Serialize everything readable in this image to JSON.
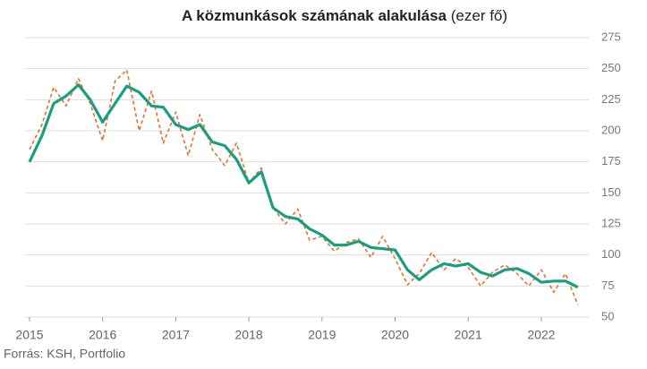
{
  "chart_data": {
    "type": "line",
    "title": "A közmunkások számának alakulása",
    "title_unit": "(ezer fő)",
    "source": "Forrás: KSH, Portfolio",
    "x": [
      2015,
      2015.17,
      2015.33,
      2015.5,
      2015.67,
      2015.83,
      2016,
      2016.17,
      2016.33,
      2016.5,
      2016.67,
      2016.83,
      2017,
      2017.17,
      2017.33,
      2017.5,
      2017.67,
      2017.83,
      2018,
      2018.17,
      2018.33,
      2018.5,
      2018.67,
      2018.83,
      2019,
      2019.17,
      2019.33,
      2019.5,
      2019.67,
      2019.83,
      2020,
      2020.17,
      2020.33,
      2020.5,
      2020.67,
      2020.83,
      2021,
      2021.17,
      2021.33,
      2021.5,
      2021.67,
      2021.83,
      2022,
      2022.17,
      2022.33,
      2022.5
    ],
    "series": [
      {
        "color": "#e8702a",
        "dashed": true,
        "values": [
          185,
          205,
          235,
          220,
          242,
          222,
          192,
          240,
          249,
          200,
          232,
          190,
          215,
          180,
          213,
          185,
          172,
          190,
          158,
          170,
          138,
          125,
          137,
          112,
          115,
          103,
          110,
          113,
          98,
          115,
          97,
          76,
          85,
          102,
          88,
          97,
          90,
          75,
          86,
          92,
          85,
          75,
          88,
          70,
          85,
          60
        ]
      },
      {
        "color": "#1a9e7f",
        "dashed": false,
        "values": [
          175,
          196,
          222,
          228,
          237,
          225,
          207,
          222,
          236,
          231,
          220,
          219,
          205,
          201,
          205,
          191,
          188,
          177,
          158,
          167,
          138,
          131,
          129,
          121,
          116,
          108,
          108,
          111,
          106,
          105,
          104,
          88,
          80,
          88,
          93,
          91,
          93,
          86,
          83,
          88,
          89,
          85,
          78,
          79,
          79,
          74
        ]
      }
    ],
    "xlim": [
      2015,
      2022.65
    ],
    "xticks": [
      2015,
      2016,
      2017,
      2018,
      2019,
      2020,
      2021,
      2022
    ],
    "ylim": [
      50,
      275
    ],
    "yticks": [
      50,
      75,
      100,
      125,
      150,
      175,
      200,
      225,
      250,
      275
    ],
    "grid": true
  }
}
